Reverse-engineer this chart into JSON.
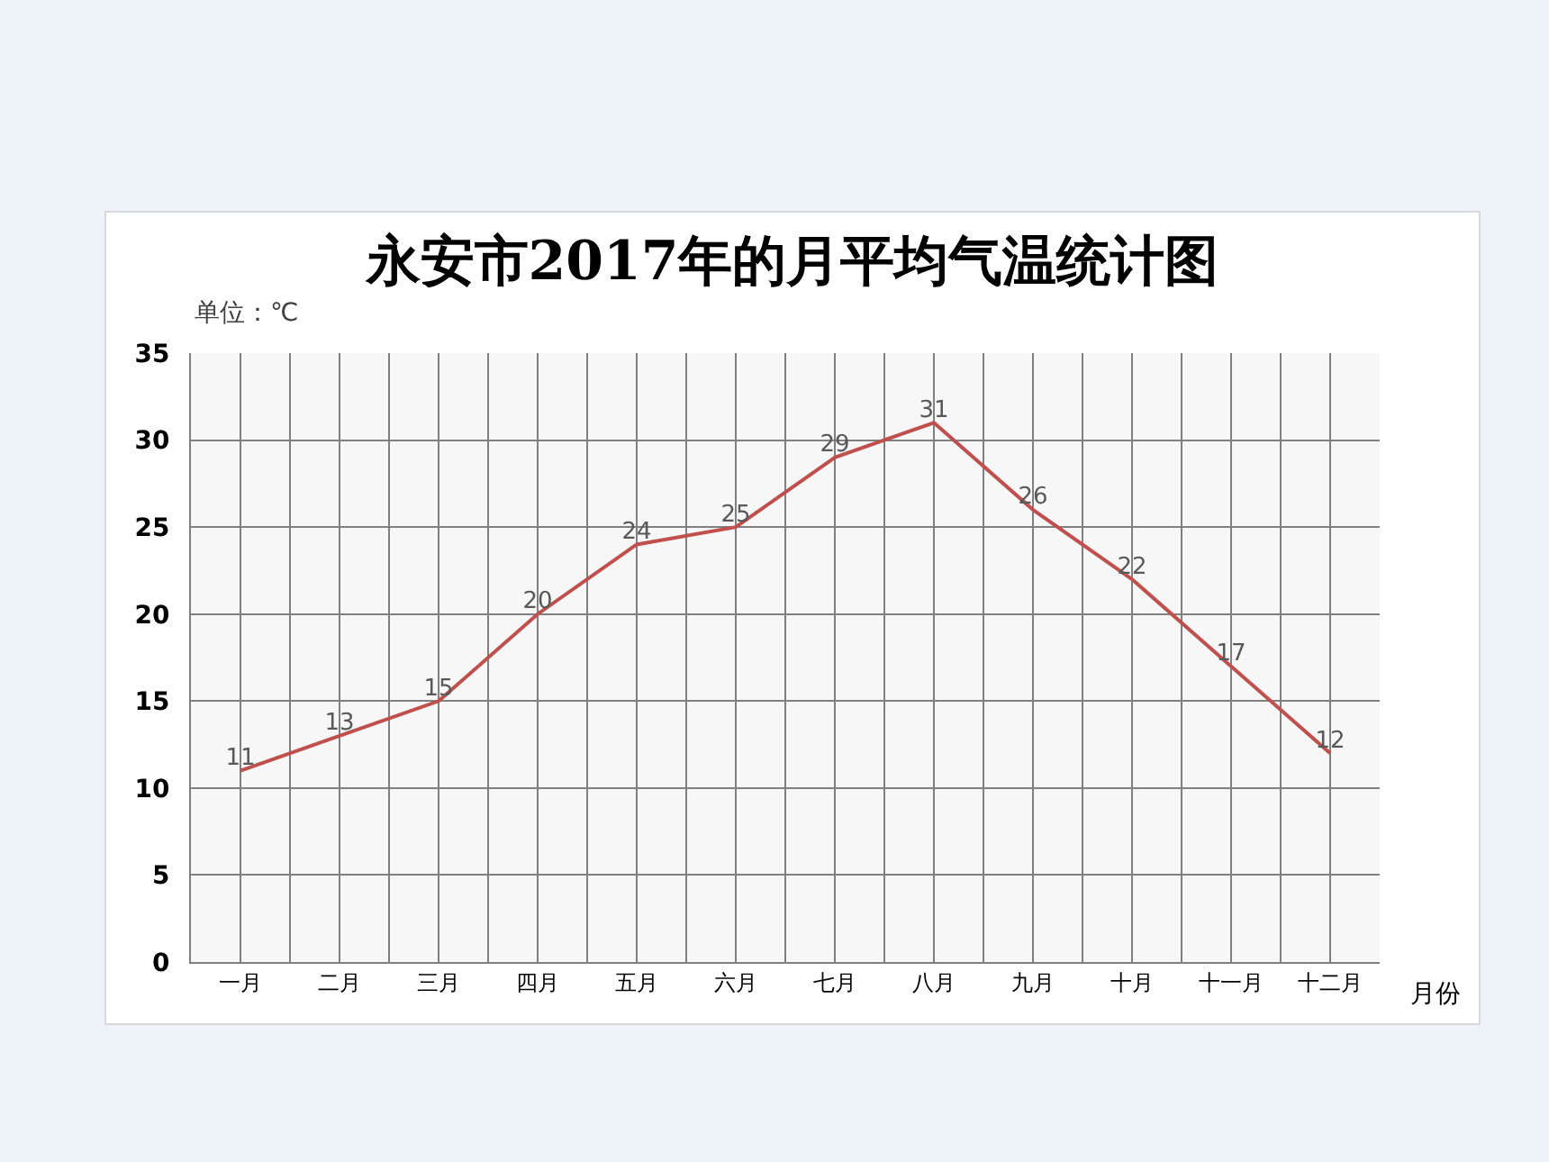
{
  "chart_data": {
    "type": "line",
    "title": "永安市2017年的月平均气温统计图",
    "ylabel": "单位：℃",
    "xlabel": "月份",
    "categories": [
      "一月",
      "二月",
      "三月",
      "四月",
      "五月",
      "六月",
      "七月",
      "八月",
      "九月",
      "十月",
      "十一月",
      "十二月"
    ],
    "series": [
      {
        "color": "#c0504d",
        "values": [
          11,
          13,
          15,
          20,
          24,
          25,
          29,
          31,
          26,
          22,
          17,
          12
        ]
      }
    ],
    "ylim": [
      0,
      35
    ],
    "yticks": [
      0,
      5,
      10,
      15,
      20,
      25,
      30,
      35
    ],
    "grid": true,
    "data_labels": true,
    "marker": "none",
    "line_style": "solid"
  }
}
